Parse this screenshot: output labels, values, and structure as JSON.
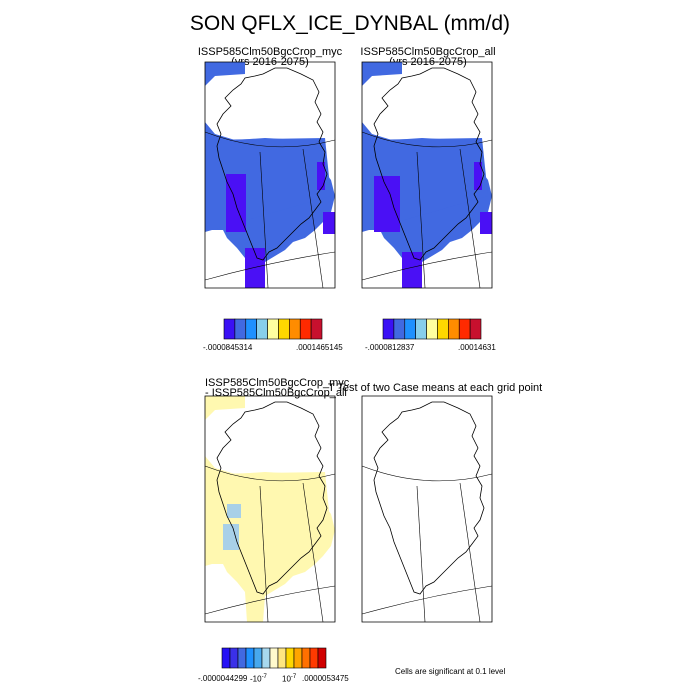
{
  "title": "SON QFLX_ICE_DYNBAL (mm/d)",
  "panels": {
    "myc": {
      "title": "ISSP585Clm50BgcCrop_myc",
      "subtitle": "(yrs 2016-2075)"
    },
    "all": {
      "title": "ISSP585Clm50BgcCrop_all",
      "subtitle": "(yrs 2016-2075)"
    },
    "diff": {
      "title_line1": "ISSP585Clm50BgcCrop_myc",
      "title_line2": "- ISSP585Clm50BgcCrop_all"
    },
    "ttest": {
      "title": "T Test of two Case means at each grid point"
    }
  },
  "colorbars": {
    "myc": {
      "min_label": "-.0000845314",
      "max_label": ".0001465145"
    },
    "all": {
      "min_label": "-.0000812837",
      "max_label": ".00014631"
    },
    "diff": {
      "min_label": "-.0000044299",
      "neg_label": "-10",
      "neg_exp": "-7",
      "pos_label": "10",
      "pos_exp": "-7",
      "max_label": ".0000053475"
    }
  },
  "significance_note": "Cells are significant at 0.1 level",
  "colors": {
    "bar9": [
      "#3a10f5",
      "#4169e1",
      "#1e90ff",
      "#87ceeb",
      "#ffffa0",
      "#ffd700",
      "#ff8c00",
      "#ff2a00",
      "#c8102e"
    ],
    "bar_diff": [
      "#2510f5",
      "#3a30e8",
      "#4169e1",
      "#1e90ff",
      "#47a8ee",
      "#a8d8ee",
      "#fffacd",
      "#ffe680",
      "#ffd700",
      "#ffa500",
      "#ff7000",
      "#ff3a00",
      "#d00000"
    ],
    "field_blue": "#4169e1",
    "field_violet": "#4a10f5",
    "field_yellow": "#fff8b0",
    "field_lightblue": "#a8d0e8"
  },
  "chart_data": [
    {
      "type": "heatmap",
      "title": "ISSP585Clm50BgcCrop_myc",
      "subtitle": "(yrs 2016-2075)",
      "colorbar_range": [
        -8.45314e-05,
        0.0001465145
      ],
      "colorbar_levels": 9
    },
    {
      "type": "heatmap",
      "title": "ISSP585Clm50BgcCrop_all",
      "subtitle": "(yrs 2016-2075)",
      "colorbar_range": [
        -8.12837e-05,
        0.00014631
      ],
      "colorbar_levels": 9
    },
    {
      "type": "heatmap",
      "title": "ISSP585Clm50BgcCrop_myc - ISSP585Clm50BgcCrop_all",
      "colorbar_range": [
        -4.4299e-06,
        5.3475e-06
      ],
      "colorbar_inner_ticks": [
        "-10^-7",
        "10^-7"
      ],
      "colorbar_levels": 13
    },
    {
      "type": "heatmap",
      "title": "T Test of two Case means at each grid point",
      "note": "Cells are significant at 0.1 level"
    }
  ]
}
